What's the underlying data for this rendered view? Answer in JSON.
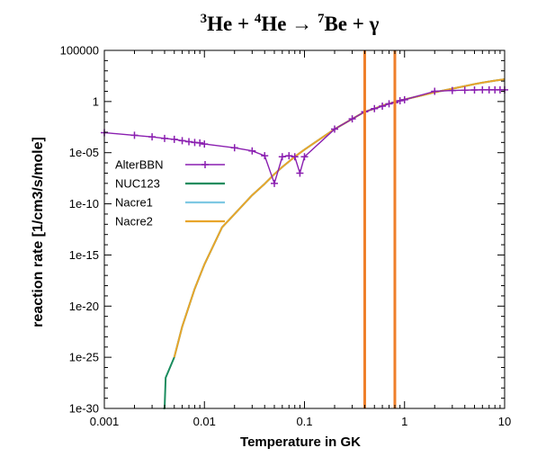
{
  "chart_data": {
    "type": "line",
    "title_parts": [
      {
        "sup": "3",
        "text": "He + "
      },
      {
        "sup": "4",
        "text": "He → "
      },
      {
        "sup": "7",
        "text": "Be + γ"
      }
    ],
    "xlabel": "Temperature in GK",
    "ylabel": "reaction rate [1/cm3/s/mole]",
    "x_scale": "log",
    "y_scale": "log",
    "xlim": [
      0.001,
      10
    ],
    "ylim": [
      1e-30,
      100000
    ],
    "x_ticks": [
      {
        "value": 0.001,
        "label": "0.001"
      },
      {
        "value": 0.01,
        "label": "0.01"
      },
      {
        "value": 0.1,
        "label": "0.1"
      },
      {
        "value": 1,
        "label": "1"
      },
      {
        "value": 10,
        "label": "10"
      }
    ],
    "y_ticks": [
      {
        "value": 100000,
        "label": "100000"
      },
      {
        "value": 1,
        "label": "1"
      },
      {
        "value": 1e-05,
        "label": "1e-05"
      },
      {
        "value": 1e-10,
        "label": "1e-10"
      },
      {
        "value": 1e-15,
        "label": "1e-15"
      },
      {
        "value": 1e-20,
        "label": "1e-20"
      },
      {
        "value": 1e-25,
        "label": "1e-25"
      },
      {
        "value": 1e-30,
        "label": "1e-30"
      }
    ],
    "vertical_lines": [
      {
        "x": 0.4,
        "color": "#ef7f2a"
      },
      {
        "x": 0.8,
        "color": "#ef7f2a"
      }
    ],
    "legend_position": "left-center",
    "series": [
      {
        "name": "AlterBBN",
        "color": "#8a1fb0",
        "marker": "plus",
        "x": [
          0.001,
          0.002,
          0.003,
          0.004,
          0.005,
          0.006,
          0.007,
          0.008,
          0.009,
          0.01,
          0.02,
          0.03,
          0.04,
          0.05,
          0.06,
          0.07,
          0.08,
          0.09,
          0.1,
          0.2,
          0.3,
          0.4,
          0.5,
          0.6,
          0.7,
          0.8,
          0.9,
          1,
          2,
          3,
          4,
          5,
          6,
          7,
          8,
          9,
          10
        ],
        "y": [
          0.0009,
          0.0005,
          0.00035,
          0.00025,
          0.0002,
          0.00015,
          0.00012,
          0.0001,
          9e-05,
          7e-05,
          3e-05,
          1.5e-05,
          5e-06,
          1e-08,
          4e-06,
          5e-06,
          4e-06,
          1e-07,
          4e-06,
          0.002,
          0.02,
          0.1,
          0.2,
          0.35,
          0.6,
          0.8,
          1.2,
          1.5,
          10,
          12,
          13,
          13.5,
          14,
          14,
          14,
          14,
          14
        ]
      },
      {
        "name": "NUC123",
        "color": "#1a8c5e",
        "marker": "none",
        "x": [
          0.0039,
          0.004,
          0.0041,
          0.005,
          0.006,
          0.008,
          0.01,
          0.015,
          0.02,
          0.03,
          0.04,
          0.05,
          0.06,
          0.08,
          0.1,
          0.15,
          0.2,
          0.3,
          0.4,
          0.5,
          0.6,
          0.8,
          1,
          1.5,
          2,
          3,
          4,
          5,
          6,
          8,
          10
        ],
        "y": [
          1e-30,
          1e-30,
          1e-27,
          1e-25,
          1e-22,
          5e-19,
          1.2e-16,
          5e-13,
          1e-11,
          7e-10,
          9e-09,
          8e-08,
          4e-07,
          4e-06,
          2e-05,
          0.0003,
          0.002,
          0.02,
          0.1,
          0.2,
          0.4,
          0.9,
          1.6,
          4,
          8,
          18,
          32,
          50,
          70,
          110,
          150
        ]
      },
      {
        "name": "Nacre1",
        "color": "#7ec8e3",
        "marker": "none",
        "x": [
          0.005,
          0.006,
          0.008,
          0.01,
          0.015,
          0.02,
          0.03,
          0.04,
          0.05,
          0.06,
          0.08,
          0.1,
          0.15,
          0.2,
          0.3,
          0.4,
          0.5,
          0.6,
          0.8,
          1,
          1.5,
          2,
          3,
          4,
          5,
          6,
          8,
          10
        ],
        "y": [
          1e-25,
          1e-22,
          5e-19,
          1.2e-16,
          5e-13,
          1e-11,
          7e-10,
          9e-09,
          8e-08,
          4e-07,
          4e-06,
          2e-05,
          0.0003,
          0.002,
          0.02,
          0.1,
          0.2,
          0.4,
          0.9,
          1.6,
          4,
          8,
          18,
          32,
          50,
          70,
          110,
          150
        ]
      },
      {
        "name": "Nacre2",
        "color": "#e8a52a",
        "marker": "none",
        "x": [
          0.005,
          0.006,
          0.008,
          0.01,
          0.015,
          0.02,
          0.03,
          0.04,
          0.05,
          0.06,
          0.08,
          0.1,
          0.15,
          0.2,
          0.3,
          0.4,
          0.5,
          0.6,
          0.8,
          1,
          1.5,
          2,
          3,
          4,
          5,
          6,
          8,
          10
        ],
        "y": [
          1e-25,
          1e-22,
          5e-19,
          1.2e-16,
          5e-13,
          1e-11,
          7e-10,
          9e-09,
          8e-08,
          4e-07,
          4e-06,
          2e-05,
          0.0003,
          0.002,
          0.02,
          0.1,
          0.2,
          0.4,
          0.9,
          1.6,
          4,
          8,
          18,
          32,
          50,
          70,
          110,
          150
        ]
      }
    ]
  }
}
